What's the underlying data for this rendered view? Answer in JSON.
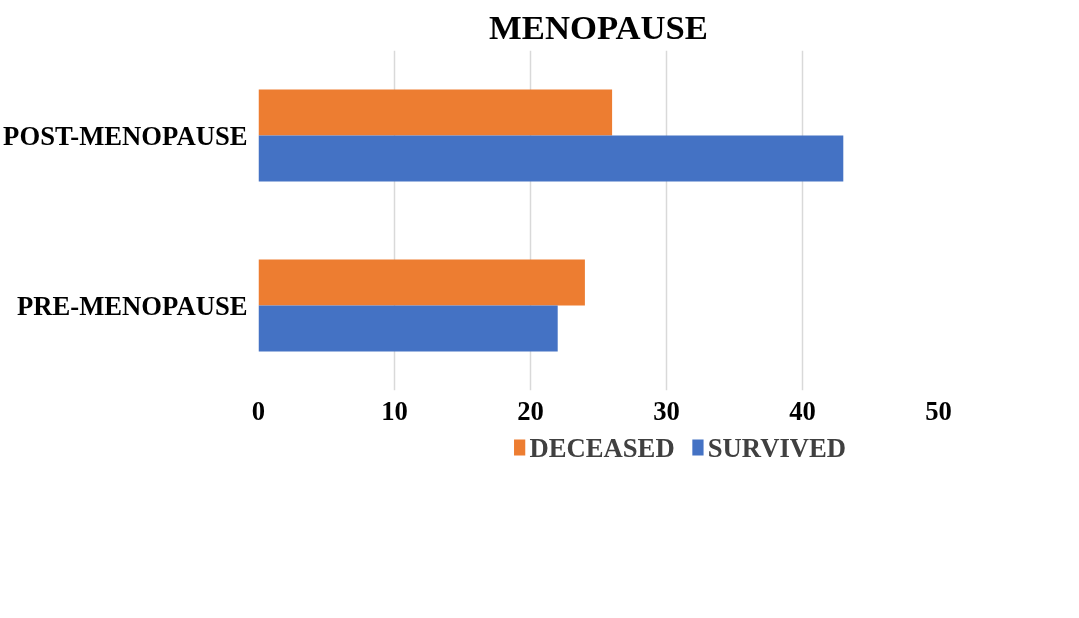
{
  "chart_data": {
    "type": "bar",
    "orientation": "horizontal",
    "title": "MENOPAUSE",
    "categories": [
      "POST-MENOPAUSE",
      "PRE-MENOPAUSE"
    ],
    "series": [
      {
        "name": "DECEASED",
        "color": "#ed7d31",
        "values": [
          26,
          24
        ]
      },
      {
        "name": "SURVIVED",
        "color": "#4472c4",
        "values": [
          43,
          22
        ]
      }
    ],
    "xlim": [
      0,
      50
    ],
    "xticks": [
      0,
      10,
      20,
      30,
      40,
      50
    ],
    "grid": "x",
    "legend": "bottom"
  }
}
